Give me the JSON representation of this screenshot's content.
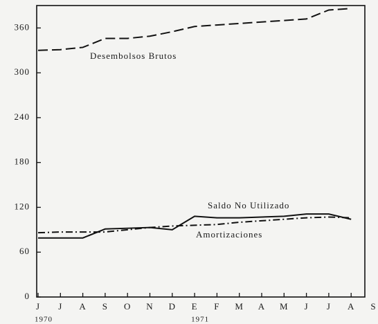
{
  "chart_data": {
    "type": "line",
    "categories": [
      "J",
      "J",
      "A",
      "S",
      "O",
      "N",
      "D",
      "E",
      "F",
      "M",
      "A",
      "M",
      "J",
      "J",
      "A",
      "S"
    ],
    "year_row": [
      "1970",
      null,
      null,
      null,
      null,
      null,
      null,
      "1971",
      null,
      null,
      null,
      null,
      null,
      null,
      null,
      null
    ],
    "series": [
      {
        "name": "Desembolsos Brutos",
        "color": "#111111",
        "style": "dashed",
        "values": [
          330,
          331,
          334,
          346,
          346,
          349,
          355,
          362,
          364,
          366,
          368,
          370,
          372,
          384,
          386,
          null
        ]
      },
      {
        "name": "Saldo No Utilizado",
        "color": "#111111",
        "style": "solid",
        "values": [
          79,
          79,
          79,
          91,
          92,
          93,
          90,
          108,
          106,
          106,
          107,
          108,
          111,
          111,
          104,
          null
        ]
      },
      {
        "name": "Amortizaciones",
        "color": "#111111",
        "style": "dashdot",
        "values": [
          86,
          87,
          87,
          87,
          90,
          93,
          95,
          96,
          97,
          100,
          102,
          104,
          106,
          107,
          106,
          null
        ]
      }
    ],
    "ylim": [
      0,
      390
    ],
    "yticks": [
      0,
      60,
      120,
      180,
      240,
      300,
      360
    ],
    "grid": false
  }
}
